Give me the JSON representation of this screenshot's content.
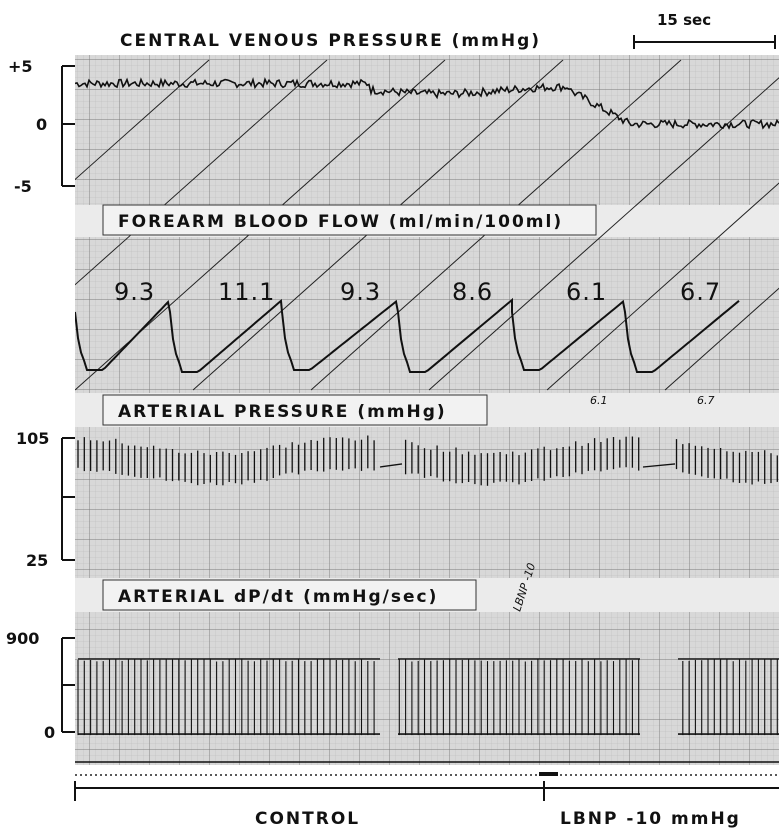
{
  "chart_data": {
    "type": "line",
    "time_scale_label": "15 sec",
    "panels": {
      "cvp": {
        "title": "CENTRAL VENOUS PRESSURE (mmHg)",
        "yticks": [
          "+5",
          "0",
          "-5"
        ],
        "ylim": [
          -5,
          5
        ],
        "baseline_control": 3.5,
        "baseline_lbnp": 0
      },
      "fbf": {
        "title": "FOREARM BLOOD FLOW (ml/min/100ml)",
        "values": [
          "9.3",
          "11.1",
          "9.3",
          "8.6",
          "6.1",
          "6.7"
        ],
        "handwritten": [
          "6.1",
          "6.7"
        ]
      },
      "ap": {
        "title": "ARTERIAL PRESSURE (mmHg)",
        "yticks": [
          "105",
          "25"
        ],
        "ylim": [
          25,
          105
        ]
      },
      "dpdt": {
        "title": "ARTERIAL dP/dt (mmHg/sec)",
        "yticks": [
          "900",
          "0"
        ],
        "ylim": [
          0,
          900
        ],
        "annotation": "LBNP -10"
      }
    },
    "conditions": [
      "CONTROL",
      "LBNP -10 mmHg"
    ]
  }
}
